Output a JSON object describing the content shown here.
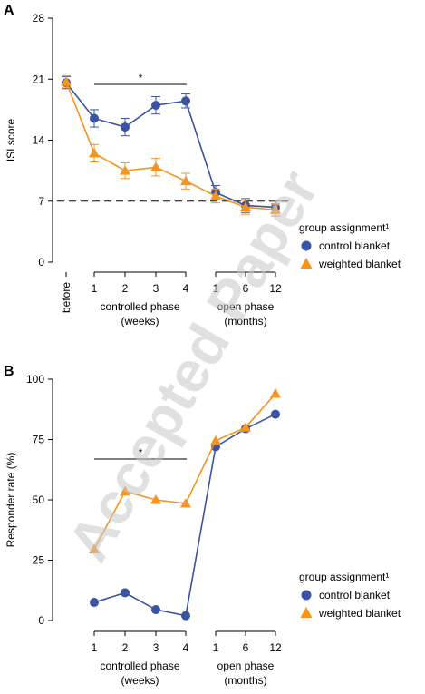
{
  "watermark": "Accepted Paper",
  "colors": {
    "control": "#3a53a4",
    "weighted": "#f7941d",
    "axis": "#000000",
    "watermark": "#c8c8c8"
  },
  "chart_data": [
    {
      "panel_label": "A",
      "type": "line",
      "ylabel": "ISI score",
      "ylim": [
        0,
        28
      ],
      "yticks": [
        "0",
        "7",
        "14",
        "21",
        "28"
      ],
      "reference_line": 7,
      "significance": "*",
      "x_groups": [
        {
          "name": "",
          "ticks": [
            "before"
          ]
        },
        {
          "name": "controlled phase\n(weeks)",
          "ticks": [
            "1",
            "2",
            "3",
            "4"
          ]
        },
        {
          "name": "open phase\n(months)",
          "ticks": [
            "1",
            "6",
            "12"
          ]
        }
      ],
      "x": [
        "before",
        "1",
        "2",
        "3",
        "4",
        "1",
        "6",
        "12"
      ],
      "legend_title": "group assignment¹",
      "series": [
        {
          "name": "control blanket",
          "marker": "circle",
          "values": [
            20.6,
            16.5,
            15.5,
            18.0,
            18.5,
            8.0,
            6.5,
            6.3
          ],
          "error": [
            0.7,
            1.0,
            1.0,
            1.0,
            0.8,
            0.8,
            0.8,
            0.7
          ]
        },
        {
          "name": "weighted blanket",
          "marker": "triangle",
          "values": [
            20.7,
            12.5,
            10.5,
            10.9,
            9.3,
            7.6,
            6.3,
            6.0
          ],
          "error": [
            0.7,
            1.0,
            0.9,
            1.0,
            0.9,
            0.8,
            0.8,
            0.7
          ]
        }
      ]
    },
    {
      "panel_label": "B",
      "type": "line",
      "ylabel": "Responder rate (%)",
      "ylim": [
        0,
        100
      ],
      "yticks": [
        "0",
        "25",
        "50",
        "75",
        "100"
      ],
      "significance": "*",
      "x_groups": [
        {
          "name": "controlled phase\n(weeks)",
          "ticks": [
            "1",
            "2",
            "3",
            "4"
          ]
        },
        {
          "name": "open phase\n(months)",
          "ticks": [
            "1",
            "6",
            "12"
          ]
        }
      ],
      "x": [
        "1",
        "2",
        "3",
        "4",
        "1",
        "6",
        "12"
      ],
      "legend_title": "group assignment¹",
      "series": [
        {
          "name": "control blanket",
          "marker": "circle",
          "values": [
            7.5,
            11.5,
            4.5,
            2.0,
            72,
            79.5,
            85.5
          ]
        },
        {
          "name": "weighted blanket",
          "marker": "triangle",
          "values": [
            29.5,
            53.5,
            50,
            48.5,
            74.5,
            80,
            94
          ]
        }
      ]
    }
  ]
}
